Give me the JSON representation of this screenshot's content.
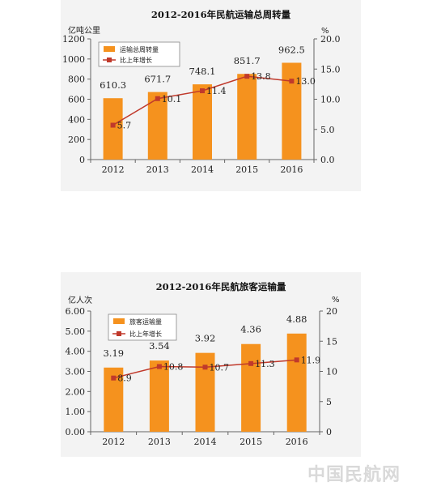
{
  "chart_data": [
    {
      "type": "bar",
      "title": "2012-2016年民航运输总周转量",
      "y_unit": "亿吨公里",
      "y2_unit": "%",
      "categories": [
        "2012",
        "2013",
        "2014",
        "2015",
        "2016"
      ],
      "series": [
        {
          "name": "运输总周转量",
          "type": "bar",
          "axis": "left",
          "values": [
            610.3,
            671.7,
            748.1,
            851.7,
            962.5
          ]
        },
        {
          "name": "比上年增长",
          "type": "line",
          "axis": "right",
          "values": [
            5.7,
            10.1,
            11.4,
            13.8,
            13.0
          ]
        }
      ],
      "ylim": [
        0,
        1200
      ],
      "y_ticks": [
        "0",
        "200",
        "400",
        "600",
        "800",
        "1000",
        "1200"
      ],
      "y2lim": [
        0,
        20
      ],
      "y2_ticks": [
        "0.0",
        "5.0",
        "10.0",
        "15.0",
        "20.0"
      ],
      "bar_labels": [
        "610.3",
        "671.7",
        "748.1",
        "851.7",
        "962.5"
      ],
      "line_labels": [
        "5.7",
        "10.1",
        "11.4",
        "13.8",
        "13.0"
      ],
      "legend": "top-left",
      "grid": false,
      "colors": {
        "bar": "#f5921e",
        "line": "#c0392b"
      }
    },
    {
      "type": "bar",
      "title": "2012-2016年民航旅客运输量",
      "y_unit": "亿人次",
      "y2_unit": "%",
      "categories": [
        "2012",
        "2013",
        "2014",
        "2015",
        "2016"
      ],
      "series": [
        {
          "name": "旅客运输量",
          "type": "bar",
          "axis": "left",
          "values": [
            3.19,
            3.54,
            3.92,
            4.36,
            4.88
          ]
        },
        {
          "name": "比上年增长",
          "type": "line",
          "axis": "right",
          "values": [
            8.9,
            10.8,
            10.7,
            11.3,
            11.9
          ]
        }
      ],
      "ylim": [
        0,
        6
      ],
      "y_ticks": [
        "0.00",
        "1.00",
        "2.00",
        "3.00",
        "4.00",
        "5.00",
        "6.00"
      ],
      "y2lim": [
        0,
        20
      ],
      "y2_ticks": [
        "0",
        "5",
        "10",
        "15",
        "20"
      ],
      "bar_labels": [
        "3.19",
        "3.54",
        "3.92",
        "4.36",
        "4.88"
      ],
      "line_labels": [
        "8.9",
        "10.8",
        "10.7",
        "11.3",
        "11.9"
      ],
      "legend": "top-left",
      "grid": false,
      "colors": {
        "bar": "#f5921e",
        "line": "#c0392b"
      }
    }
  ],
  "watermark": "中国民航网"
}
